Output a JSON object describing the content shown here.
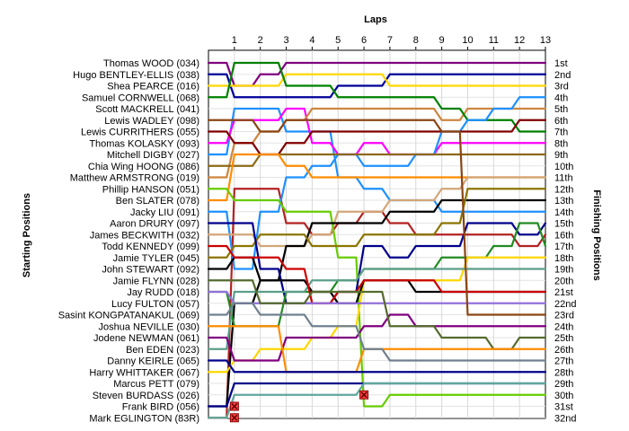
{
  "chart_data": {
    "type": "line",
    "title": "",
    "xlabel": "Laps",
    "ylabel_left": "Starting Positions",
    "ylabel_right": "Finishing Positions",
    "laps": [
      1,
      2,
      3,
      4,
      5,
      6,
      7,
      8,
      9,
      10,
      11,
      12,
      13
    ],
    "xlim": [
      0,
      13
    ],
    "ylim": [
      1,
      32
    ],
    "grid": true,
    "drivers": [
      "Thomas WOOD (034)",
      "Hugo BENTLEY-ELLIS (038)",
      "Shea PEARCE (016)",
      "Samuel CORNWELL (068)",
      "Scott MACKRELL (041)",
      "Lewis WADLEY (098)",
      "Lewis CURRITHERS (055)",
      "Thomas KOLASKY (093)",
      "Mitchell DIGBY (027)",
      "Chia Wing HOONG (086)",
      "Matthew ARMSTRONG (019)",
      "Phillip HANSON (051)",
      "Ben SLATER (078)",
      "Jacky LIU (091)",
      "Aaron DRURY (097)",
      "James BECKWITH (032)",
      "Todd KENNEDY (099)",
      "Jamie TYLER (045)",
      "John STEWART (092)",
      "Jamie FLYNN (028)",
      "Jay RUDD (018)",
      "Lucy FULTON (057)",
      "Sasint KONGPATANAKUL (069)",
      "Joshua NEVILLE (030)",
      "Jodene NEWMAN (061)",
      "Ben EDEN (023)",
      "Danny KEIRLE (065)",
      "Harry WHITTAKER (067)",
      "Marcus PETT (079)",
      "Steven BURDASS (026)",
      "Frank BIRD (056)",
      "Mark EGLINGTON (83R)"
    ],
    "finishing_labels": [
      "1st",
      "2nd",
      "3rd",
      "4th",
      "5th",
      "6th",
      "7th",
      "8th",
      "9th",
      "10th",
      "11th",
      "12th",
      "13th",
      "14th",
      "15th",
      "16th",
      "17th",
      "18th",
      "19th",
      "20th",
      "21st",
      "22nd",
      "23rd",
      "24th",
      "25th",
      "26th",
      "27th",
      "28th",
      "29th",
      "30th",
      "31st",
      "32nd"
    ],
    "series": [
      {
        "color": "#800080",
        "start": 1,
        "positions": [
          3,
          2,
          1,
          1,
          1,
          1,
          1,
          1,
          1,
          1,
          1,
          1,
          1
        ]
      },
      {
        "color": "#000099",
        "start": 2,
        "positions": [
          4,
          4,
          4,
          4,
          3,
          3,
          2,
          2,
          2,
          2,
          2,
          2,
          2
        ]
      },
      {
        "color": "#ffd700",
        "start": 3,
        "positions": [
          3,
          3,
          2,
          2,
          2,
          2,
          3,
          3,
          3,
          3,
          3,
          3,
          3
        ]
      },
      {
        "color": "#1e90ff",
        "start": 9,
        "positions": [
          5,
          5,
          7,
          7,
          11,
          12,
          13,
          13,
          14,
          14,
          14,
          14,
          14
        ]
      },
      {
        "color": "#b22222",
        "start": 32,
        "positions": [
          12,
          12,
          15,
          16,
          15,
          14,
          15,
          16,
          16,
          16,
          16,
          17,
          16
        ]
      },
      {
        "color": "#ff00ff",
        "start": 8,
        "positions": [
          6,
          6,
          5,
          8,
          9,
          8,
          9,
          9,
          8,
          8,
          8,
          8,
          8
        ]
      },
      {
        "color": "#cd853f",
        "start": 11,
        "positions": [
          8,
          7,
          6,
          5,
          5,
          5,
          5,
          5,
          6,
          5,
          5,
          5,
          5
        ]
      },
      {
        "color": "#008000",
        "start": 4,
        "positions": [
          1,
          1,
          3,
          3,
          4,
          4,
          4,
          4,
          5,
          6,
          6,
          7,
          7
        ]
      },
      {
        "color": "#1e90ff",
        "start": 14,
        "positions": [
          19,
          14,
          11,
          10,
          9,
          10,
          10,
          9,
          7,
          6,
          5,
          4,
          4
        ]
      },
      {
        "color": "#800000",
        "start": 7,
        "positions": [
          8,
          9,
          8,
          7,
          7,
          7,
          7,
          7,
          7,
          7,
          7,
          6,
          6
        ]
      },
      {
        "color": "#8b6914",
        "start": 10,
        "positions": [
          10,
          9,
          9,
          9,
          9,
          9,
          9,
          9,
          9,
          9,
          9,
          9,
          9
        ]
      },
      {
        "color": "#ff8c00",
        "start": 13,
        "positions": [
          9,
          9,
          10,
          11,
          11,
          11,
          11,
          11,
          11,
          11,
          11,
          11,
          11
        ]
      },
      {
        "color": "#d2a679",
        "start": 16,
        "positions": [
          16,
          17,
          17,
          16,
          14,
          14,
          13,
          13,
          12,
          11,
          11,
          11,
          11
        ]
      },
      {
        "color": "#66cc00",
        "start": 12,
        "positions": [
          13,
          13,
          14,
          14,
          18,
          31,
          30,
          30,
          30,
          30,
          30,
          30,
          30
        ]
      },
      {
        "color": "#000000",
        "start": 31,
        "positions": [
          22,
          20,
          17,
          15,
          15,
          15,
          14,
          14,
          13,
          13,
          13,
          13,
          13
        ]
      },
      {
        "color": "#8b7500",
        "start": 18,
        "positions": [
          17,
          16,
          16,
          17,
          17,
          16,
          16,
          16,
          15,
          12,
          12,
          12,
          12
        ]
      },
      {
        "color": "#00008b",
        "start": 15,
        "positions": [
          15,
          19,
          22,
          22,
          21,
          17,
          18,
          17,
          17,
          15,
          15,
          16,
          15
        ]
      },
      {
        "color": "#228b22",
        "start": 21,
        "positions": [
          24,
          24,
          21,
          21,
          20,
          19,
          19,
          19,
          18,
          18,
          17,
          15,
          17
        ]
      },
      {
        "color": "#ffd700",
        "start": 28,
        "positions": [
          27,
          26,
          26,
          25,
          24,
          20,
          20,
          20,
          20,
          18,
          18,
          18,
          18
        ]
      },
      {
        "color": "#5c9e8a",
        "start": 26,
        "positions": [
          21,
          21,
          21,
          20,
          20,
          19,
          19,
          19,
          19,
          19,
          19,
          19,
          19
        ]
      },
      {
        "color": "#000000",
        "start": 19,
        "positions": [
          18,
          20,
          20,
          21,
          22,
          20,
          20,
          21,
          21,
          21,
          21,
          21,
          21
        ]
      },
      {
        "color": "#cc0000",
        "start": 17,
        "positions": [
          18,
          18,
          19,
          22,
          21,
          20,
          20,
          20,
          21,
          21,
          21,
          21,
          21
        ]
      },
      {
        "color": "#9370db",
        "start": 21,
        "positions": [
          22,
          22,
          22,
          22,
          22,
          22,
          22,
          22,
          22,
          22,
          22,
          22,
          22
        ]
      },
      {
        "color": "#8b4513",
        "start": 6,
        "positions": [
          6,
          7,
          6,
          6,
          6,
          6,
          6,
          6,
          7,
          23,
          23,
          23,
          23
        ]
      },
      {
        "color": "#800080",
        "start": 25,
        "positions": [
          27,
          27,
          25,
          25,
          25,
          24,
          23,
          24,
          24,
          24,
          24,
          24,
          24
        ]
      },
      {
        "color": "#556b2f",
        "start": 20,
        "positions": [
          20,
          22,
          22,
          21,
          21,
          21,
          24,
          24,
          25,
          25,
          26,
          25,
          25
        ]
      },
      {
        "color": "#ff8c00",
        "start": 24,
        "positions": [
          24,
          24,
          28,
          28,
          28,
          26,
          26,
          26,
          26,
          26,
          26,
          26,
          26
        ]
      },
      {
        "color": "#708090",
        "start": 23,
        "positions": [
          22,
          23,
          23,
          24,
          24,
          26,
          27,
          27,
          27,
          27,
          27,
          27,
          27
        ]
      },
      {
        "color": "#00008b",
        "start": 27,
        "positions": [
          28,
          28,
          28,
          28,
          28,
          28,
          28,
          28,
          28,
          28,
          28,
          28,
          28
        ]
      },
      {
        "color": "#00008b",
        "start": 31,
        "positions": [
          29,
          29,
          29,
          29,
          29,
          29,
          29,
          29,
          29,
          29,
          29,
          29,
          29
        ]
      },
      {
        "color": "#5fa89a",
        "start": 32,
        "positions": [
          30,
          30,
          30,
          30,
          30,
          29,
          29,
          29,
          29,
          29,
          29,
          29,
          29
        ]
      }
    ],
    "retired": [
      {
        "driver": "Frank BIRD (056)",
        "lap": 1,
        "position": 31
      },
      {
        "driver": "Mark EGLINGTON (83R)",
        "lap": 1,
        "position": 32
      },
      {
        "driver": "Steven BURDASS (026)",
        "lap": 6,
        "position": 30
      }
    ]
  }
}
